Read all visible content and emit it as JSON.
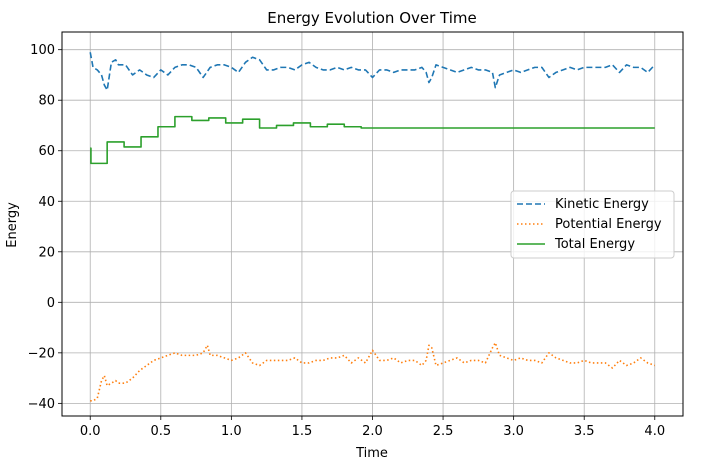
{
  "chart_data": {
    "type": "line",
    "title": "Energy Evolution Over Time",
    "xlabel": "Time",
    "ylabel": "Energy",
    "xlim": [
      -0.2,
      4.2
    ],
    "ylim": [
      -45,
      107
    ],
    "xticks": [
      0.0,
      0.5,
      1.0,
      1.5,
      2.0,
      2.5,
      3.0,
      3.5,
      4.0
    ],
    "xtick_labels": [
      "0.0",
      "0.5",
      "1.0",
      "1.5",
      "2.0",
      "2.5",
      "3.0",
      "3.5",
      "4.0"
    ],
    "yticks": [
      -40,
      -20,
      0,
      20,
      40,
      60,
      80,
      100
    ],
    "ytick_labels": [
      "−40",
      "−20",
      "0",
      "20",
      "40",
      "60",
      "80",
      "100"
    ],
    "grid": true,
    "legend_position": "center-right",
    "series": [
      {
        "name": "Kinetic Energy",
        "color": "#1f77b4",
        "style": "dashed",
        "x": [
          0.0,
          0.02,
          0.05,
          0.08,
          0.1,
          0.12,
          0.15,
          0.18,
          0.2,
          0.25,
          0.3,
          0.35,
          0.4,
          0.45,
          0.5,
          0.55,
          0.6,
          0.65,
          0.7,
          0.75,
          0.8,
          0.85,
          0.9,
          0.95,
          1.0,
          1.05,
          1.1,
          1.15,
          1.2,
          1.25,
          1.3,
          1.35,
          1.4,
          1.45,
          1.5,
          1.55,
          1.6,
          1.65,
          1.7,
          1.75,
          1.8,
          1.85,
          1.9,
          1.95,
          2.0,
          2.05,
          2.1,
          2.15,
          2.2,
          2.25,
          2.3,
          2.35,
          2.38,
          2.4,
          2.42,
          2.45,
          2.5,
          2.55,
          2.6,
          2.65,
          2.7,
          2.75,
          2.8,
          2.85,
          2.87,
          2.9,
          2.95,
          3.0,
          3.05,
          3.1,
          3.15,
          3.2,
          3.25,
          3.3,
          3.35,
          3.4,
          3.45,
          3.5,
          3.55,
          3.6,
          3.65,
          3.7,
          3.75,
          3.8,
          3.85,
          3.9,
          3.95,
          4.0
        ],
        "values": [
          99,
          93,
          92,
          90,
          86,
          84,
          95,
          96,
          94,
          94,
          90,
          92,
          90,
          89,
          92,
          90,
          93,
          94,
          94,
          93,
          89,
          93,
          94,
          94,
          93,
          91,
          95,
          97,
          96,
          92,
          92,
          93,
          93,
          92,
          94,
          95,
          93,
          92,
          92,
          93,
          92,
          93,
          92,
          92,
          89,
          92,
          92,
          91,
          92,
          92,
          92,
          93,
          91,
          87,
          89,
          94,
          93,
          92,
          91,
          92,
          93,
          92,
          92,
          91,
          85,
          90,
          91,
          92,
          91,
          92,
          93,
          93,
          89,
          91,
          92,
          93,
          92,
          93,
          93,
          93,
          93,
          94,
          91,
          94,
          93,
          93,
          91,
          94
        ]
      },
      {
        "name": "Potential Energy",
        "color": "#ff7f0e",
        "style": "dotted",
        "x": [
          0.0,
          0.02,
          0.05,
          0.08,
          0.1,
          0.12,
          0.15,
          0.18,
          0.2,
          0.25,
          0.3,
          0.35,
          0.4,
          0.45,
          0.5,
          0.55,
          0.6,
          0.65,
          0.7,
          0.75,
          0.8,
          0.83,
          0.85,
          0.9,
          0.95,
          1.0,
          1.05,
          1.1,
          1.15,
          1.2,
          1.25,
          1.3,
          1.35,
          1.4,
          1.45,
          1.5,
          1.55,
          1.6,
          1.65,
          1.7,
          1.75,
          1.8,
          1.85,
          1.9,
          1.95,
          2.0,
          2.05,
          2.1,
          2.15,
          2.2,
          2.25,
          2.3,
          2.35,
          2.38,
          2.4,
          2.42,
          2.45,
          2.5,
          2.55,
          2.6,
          2.65,
          2.7,
          2.75,
          2.8,
          2.85,
          2.87,
          2.9,
          2.95,
          3.0,
          3.05,
          3.1,
          3.15,
          3.2,
          3.25,
          3.3,
          3.35,
          3.4,
          3.45,
          3.5,
          3.55,
          3.6,
          3.65,
          3.7,
          3.75,
          3.8,
          3.85,
          3.9,
          3.95,
          4.0
        ],
        "values": [
          -39,
          -39,
          -38,
          -31,
          -29,
          -33,
          -32,
          -31,
          -32,
          -32,
          -30,
          -27,
          -25,
          -23,
          -22,
          -21,
          -20,
          -21,
          -21,
          -21,
          -20,
          -17,
          -21,
          -21,
          -22,
          -23,
          -22,
          -20,
          -24,
          -25,
          -23,
          -23,
          -23,
          -23,
          -22,
          -24,
          -24,
          -23,
          -23,
          -22,
          -22,
          -21,
          -24,
          -22,
          -24,
          -19,
          -23,
          -23,
          -22,
          -24,
          -23,
          -23,
          -25,
          -23,
          -17,
          -18,
          -25,
          -24,
          -23,
          -22,
          -24,
          -23,
          -23,
          -24,
          -18,
          -16,
          -21,
          -22,
          -23,
          -22,
          -23,
          -23,
          -24,
          -20,
          -22,
          -23,
          -24,
          -24,
          -23,
          -24,
          -24,
          -24,
          -26,
          -23,
          -25,
          -24,
          -22,
          -24,
          -25
        ]
      },
      {
        "name": "Total Energy",
        "color": "#2ca02c",
        "style": "solid",
        "step": true,
        "x": [
          0.0,
          0.005,
          0.12,
          0.24,
          0.36,
          0.48,
          0.6,
          0.72,
          0.84,
          0.96,
          1.08,
          1.2,
          1.32,
          1.44,
          1.56,
          1.68,
          1.8,
          1.92,
          4.0
        ],
        "values": [
          61,
          55,
          63.5,
          61.5,
          65.5,
          69.5,
          73.5,
          72,
          73,
          71,
          72.5,
          69,
          70,
          71,
          69.5,
          70.5,
          69.5,
          69,
          69
        ]
      }
    ]
  }
}
